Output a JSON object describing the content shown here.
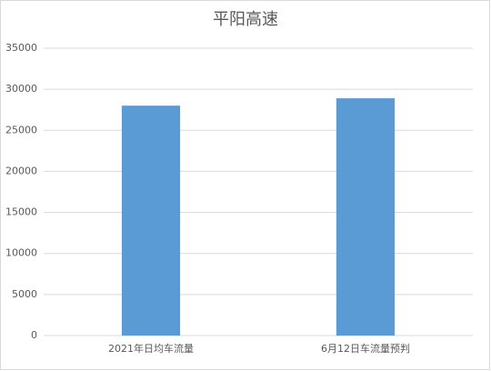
{
  "chart_data": {
    "type": "bar",
    "title": "平阳高速",
    "categories": [
      "2021年日均车流量",
      "6月12日车流量预判"
    ],
    "values": [
      28000,
      28900
    ],
    "color": "#5b9bd5",
    "ylim": [
      0,
      35000
    ],
    "yticks": [
      0,
      5000,
      10000,
      15000,
      20000,
      25000,
      30000,
      35000
    ],
    "grid": true
  }
}
